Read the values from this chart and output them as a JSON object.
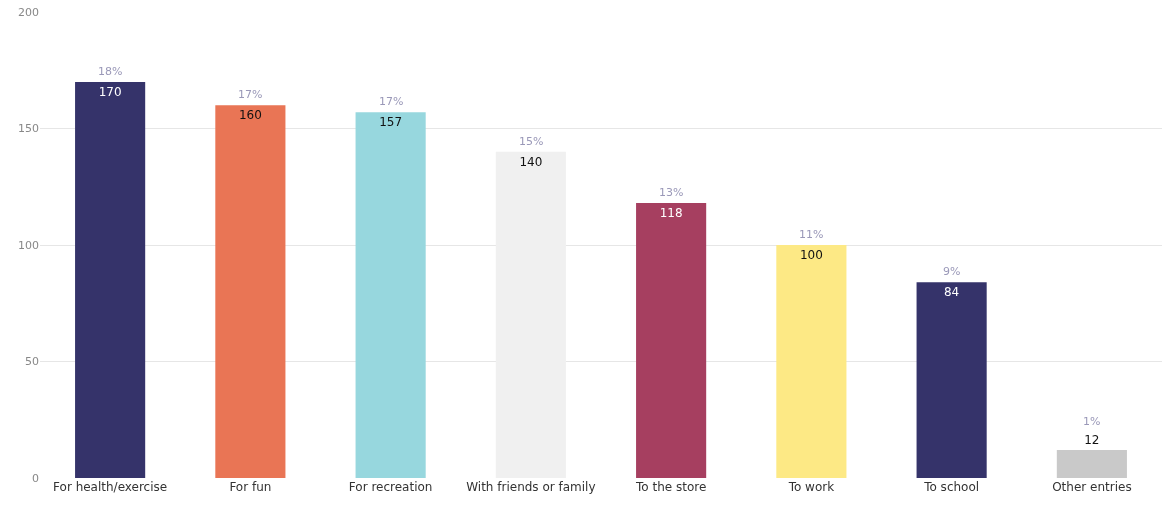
{
  "chart_data": {
    "type": "bar",
    "categories": [
      "For health/exercise",
      "For fun",
      "For recreation",
      "With friends or family",
      "To the store",
      "To work",
      "To school",
      "Other entries"
    ],
    "values": [
      170,
      160,
      157,
      140,
      118,
      100,
      84,
      12
    ],
    "colors": [
      "#35336a",
      "#e97555",
      "#97d7de",
      "#f0f0f0",
      "#a63f60",
      "#fde985",
      "#35336a",
      "#c9c9c9"
    ],
    "data_labels": true,
    "annotations": [
      {
        "text": "18%",
        "x": "For health/exercise",
        "y": 170
      },
      {
        "text": "17%",
        "x": "For fun",
        "y": 160
      },
      {
        "text": "17%",
        "x": "For recreation",
        "y": 157
      },
      {
        "text": "15%",
        "x": "With friends or family",
        "y": 140
      },
      {
        "text": "13%",
        "x": "To the store",
        "y": 118
      },
      {
        "text": "11%",
        "x": "To work",
        "y": 100
      },
      {
        "text": "9%",
        "x": "To school",
        "y": 84
      },
      {
        "text": "1%",
        "x": "Other entries",
        "y": 12
      }
    ],
    "ylim": [
      0,
      200
    ],
    "yticks": [
      0,
      50,
      100,
      150,
      200
    ],
    "grid": "y",
    "legend": false
  }
}
